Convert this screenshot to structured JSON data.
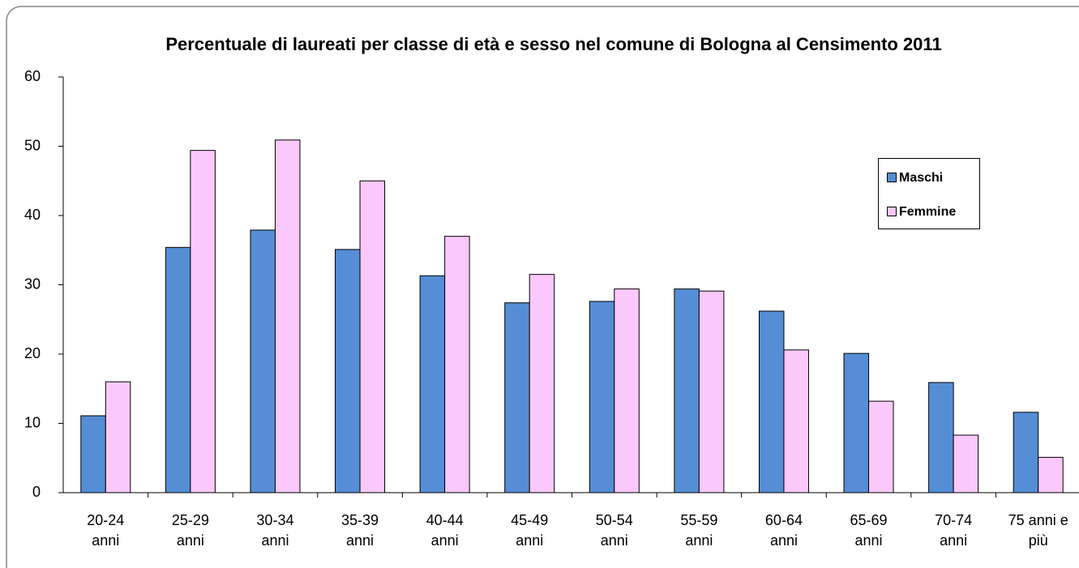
{
  "chart_data": {
    "type": "bar",
    "title": "Percentuale di laureati per classe di età e sesso nel comune di Bologna al Censimento 2011",
    "categories": [
      "20-24 anni",
      "25-29 anni",
      "30-34 anni",
      "35-39 anni",
      "40-44 anni",
      "45-49 anni",
      "50-54 anni",
      "55-59 anni",
      "60-64 anni",
      "65-69 anni",
      "70-74 anni",
      "75 anni e più"
    ],
    "series": [
      {
        "name": "Maschi",
        "color": "#558ed5",
        "values": [
          11.1,
          35.4,
          37.9,
          35.1,
          31.3,
          27.4,
          27.6,
          29.4,
          26.2,
          20.1,
          15.9,
          11.6
        ]
      },
      {
        "name": "Femmine",
        "color": "#fbc8fb",
        "values": [
          16.0,
          49.4,
          50.9,
          45.0,
          37.0,
          31.5,
          29.4,
          29.1,
          20.6,
          13.2,
          8.3,
          5.1
        ]
      }
    ],
    "ylim": [
      0,
      60
    ],
    "yticks": [
      0,
      10,
      20,
      30,
      40,
      50,
      60
    ],
    "legend": "right"
  }
}
